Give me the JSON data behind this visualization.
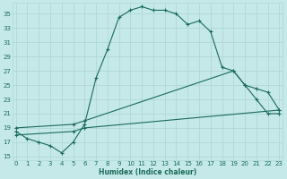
{
  "xlabel": "Humidex (Indice chaleur)",
  "bg_color": "#c5e8e8",
  "grid_color": "#b0d8d8",
  "line_color": "#1a6b5a",
  "ylim": [
    14.5,
    36.5
  ],
  "xlim": [
    -0.3,
    23.3
  ],
  "yticks": [
    15,
    17,
    19,
    21,
    23,
    25,
    27,
    29,
    31,
    33,
    35
  ],
  "xticks": [
    0,
    1,
    2,
    3,
    4,
    5,
    6,
    7,
    8,
    9,
    10,
    11,
    12,
    13,
    14,
    15,
    16,
    17,
    18,
    19,
    20,
    21,
    22,
    23
  ],
  "curve1_x": [
    0,
    1,
    2,
    3,
    4,
    5,
    6,
    7,
    8,
    9,
    10,
    11,
    12,
    13,
    14,
    15,
    16,
    17,
    18,
    19,
    20,
    21,
    22,
    23
  ],
  "curve1_y": [
    18.5,
    17.5,
    17.0,
    16.5,
    15.5,
    17.0,
    19.5,
    26.0,
    30.0,
    34.5,
    35.5,
    36.0,
    35.5,
    35.5,
    35.0,
    33.5,
    34.0,
    32.5,
    27.5,
    27.0,
    25.0,
    23.0,
    21.0,
    21.0
  ],
  "curve2_x": [
    0,
    5,
    6,
    19,
    20,
    21,
    22,
    23
  ],
  "curve2_y": [
    19.0,
    19.5,
    20.0,
    27.0,
    25.0,
    24.5,
    24.0,
    21.5
  ],
  "curve3_x": [
    0,
    5,
    6,
    23
  ],
  "curve3_y": [
    18.0,
    18.5,
    19.0,
    21.5
  ]
}
